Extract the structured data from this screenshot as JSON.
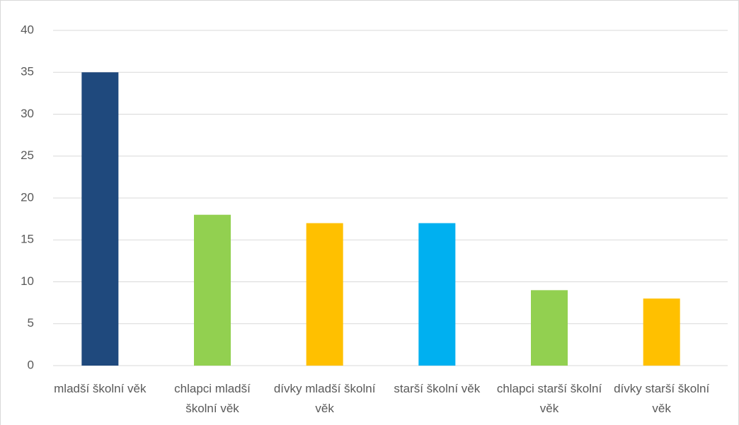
{
  "chart_data": {
    "type": "bar",
    "categories": [
      "mladší školní věk",
      "chlapci mladší školní věk",
      "dívky mladší školní věk",
      "starší školní věk",
      "chlapci starší školní věk",
      "dívky starší školní věk"
    ],
    "values": [
      35,
      18,
      17,
      17,
      9,
      8
    ],
    "colors": [
      "#1f497d",
      "#92d050",
      "#ffc000",
      "#00b0f0",
      "#92d050",
      "#ffc000"
    ],
    "ylim": [
      0,
      40
    ],
    "yticks": [
      0,
      5,
      10,
      15,
      20,
      25,
      30,
      35,
      40
    ],
    "grid": true
  }
}
